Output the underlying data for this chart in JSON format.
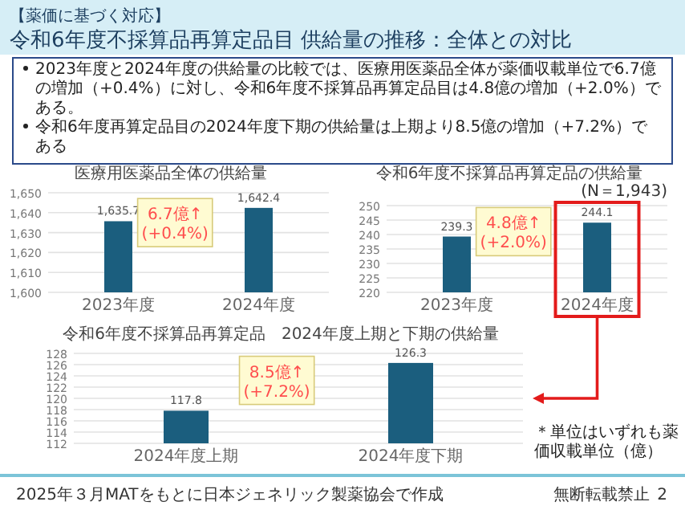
{
  "chart_data": [
    {
      "type": "other",
      "subtitle": "【薬価に基づく対応】",
      "title": "令和6年度不採算品再算定品目 供給量の推移：全体との対比",
      "annotations": [
        "2023年度と2024年度の供給量の比較では、医療用医薬品全体が薬価収載単位で6.7億の増加（+0.4%）に対し、令和6年度不採算品再算定品目は4.8億の増加（+2.0%）である。",
        "令和6年度再算定品目の2024年度下期の供給量は上期より8.5億の増加（+7.2%）である",
        "＊単位はいずれも薬価収載単位（億）",
        "2025年３月MATをもとに日本ジェネリック製薬協会で作成",
        "無断転載禁止",
        "2"
      ]
    },
    {
      "type": "bar",
      "title": "医療用医薬品全体の供給量",
      "categories": [
        "2023年度",
        "2024年度"
      ],
      "values": [
        1635.7,
        1642.4
      ],
      "value_labels": [
        "1,635.7",
        "1,642.4"
      ],
      "color": "#1b5e7e",
      "ylim": [
        1600,
        1650
      ],
      "yticks": [
        {
          "value": 1600,
          "label": "1,600"
        },
        {
          "value": 1610,
          "label": "1,610"
        },
        {
          "value": 1620,
          "label": "1,620"
        },
        {
          "value": 1630,
          "label": "1,630"
        },
        {
          "value": 1640,
          "label": "1,640"
        },
        {
          "value": 1650,
          "label": "1,650"
        }
      ],
      "grid": "y",
      "annotations": [
        "6.7億↑\n(+0.4%)"
      ]
    },
    {
      "type": "bar",
      "title": "令和6年度不採算品再算定品の供給量",
      "subtitle": "(N＝1,943)",
      "categories": [
        "2023年度",
        "2024年度"
      ],
      "values": [
        239.3,
        244.1
      ],
      "value_labels": [
        "239.3",
        "244.1"
      ],
      "color": "#1b5e7e",
      "ylim": [
        220,
        250
      ],
      "yticks": [
        220,
        225,
        230,
        235,
        240,
        245,
        250
      ],
      "grid": "y",
      "annotations": [
        "4.8億↑\n(+2.0%)"
      ]
    },
    {
      "type": "bar",
      "title": "令和6年度不採算品再算定品　2024年度上期と下期の供給量",
      "categories": [
        "2024年度上期",
        "2024年度下期"
      ],
      "values": [
        117.8,
        126.3
      ],
      "value_labels": [
        "117.8",
        "126.3"
      ],
      "color": "#1b5e7e",
      "ylim": [
        112,
        128
      ],
      "yticks": [
        112,
        114,
        116,
        118,
        120,
        122,
        124,
        126,
        128
      ],
      "grid": "y",
      "annotations": [
        "8.5億↑\n(+7.2%)"
      ]
    }
  ]
}
